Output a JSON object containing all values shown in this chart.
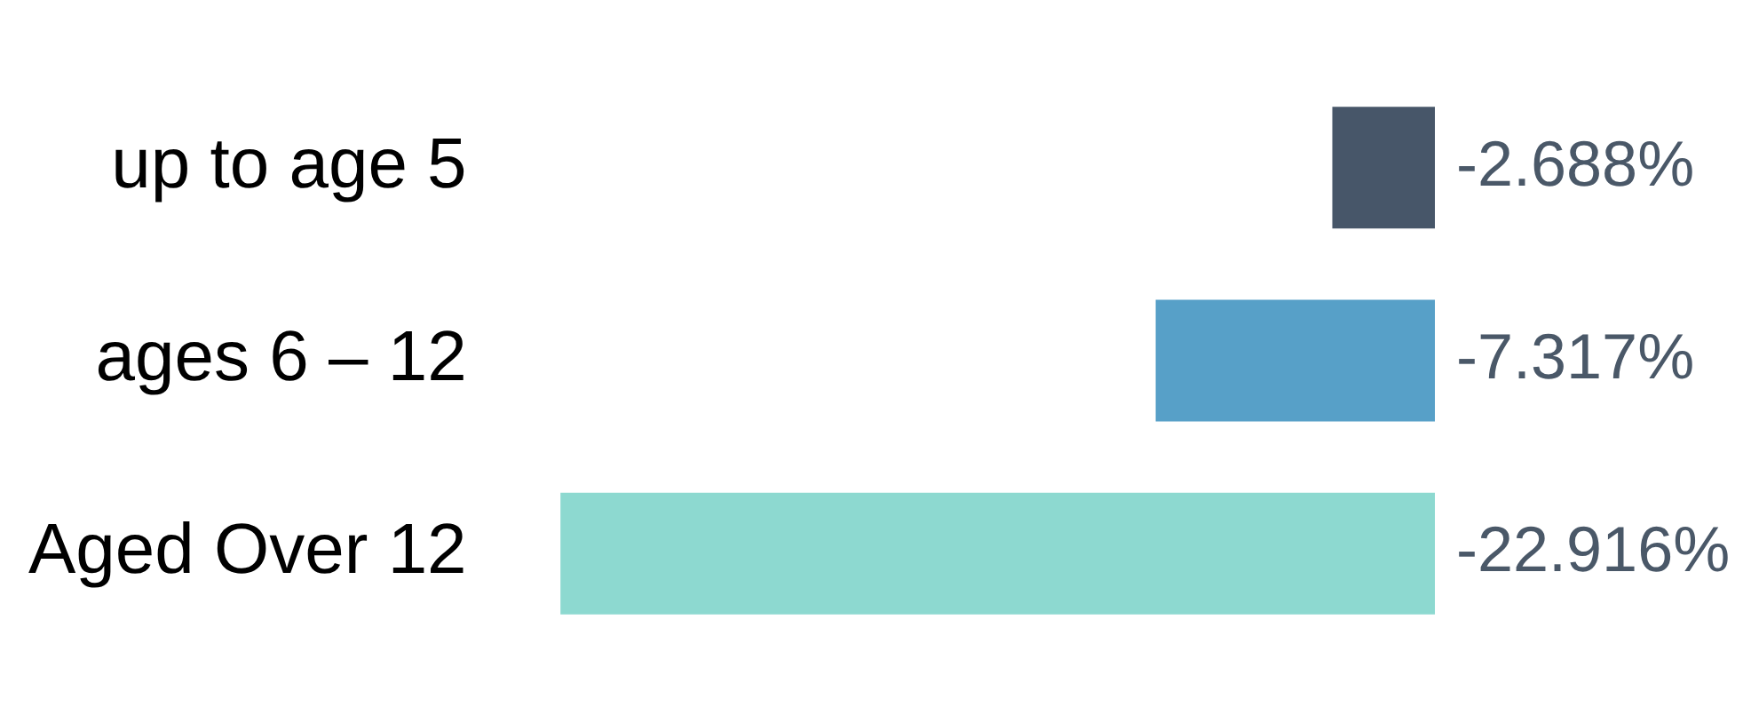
{
  "chart_data": {
    "type": "bar",
    "orientation": "horizontal",
    "categories": [
      "up to age 5",
      "ages 6 – 12",
      "Aged Over 12"
    ],
    "values": [
      -2.688,
      -7.317,
      -22.916
    ],
    "colors": [
      "#475669",
      "#57a0c8",
      "#8dd9d0"
    ],
    "value_labels": [
      "-2.688%",
      "-7.317%",
      "-22.916%"
    ],
    "grid": false,
    "legend": false
  }
}
